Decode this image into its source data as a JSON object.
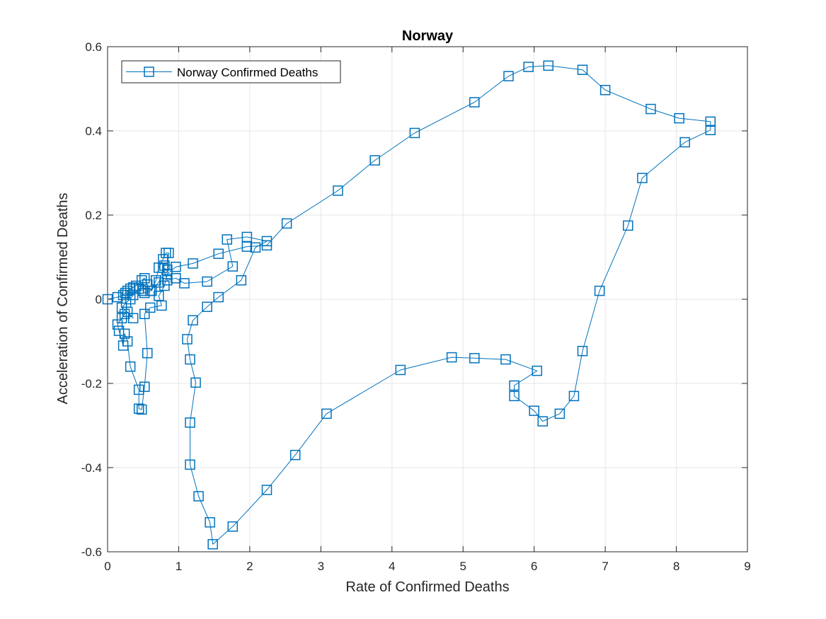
{
  "chart_data": {
    "type": "line",
    "title": "Norway",
    "xlabel": "Rate of Confirmed Deaths",
    "ylabel": "Acceleration of Confirmed Deaths",
    "xlim": [
      0,
      9
    ],
    "ylim": [
      -0.6,
      0.6
    ],
    "xticks": [
      0,
      1,
      2,
      3,
      4,
      5,
      6,
      7,
      8,
      9
    ],
    "yticks": [
      -0.6,
      -0.4,
      -0.2,
      0,
      0.2,
      0.4,
      0.6
    ],
    "xtick_labels": [
      "0",
      "1",
      "2",
      "3",
      "4",
      "5",
      "6",
      "7",
      "8",
      "9"
    ],
    "ytick_labels": [
      "-0.6",
      "-0.4",
      "-0.2",
      "0",
      "0.2",
      "0.4",
      "0.6"
    ],
    "grid": true,
    "legend_position": "top-left",
    "marker": "square",
    "series": [
      {
        "name": "Norway Confirmed Deaths",
        "color": "#0072BD",
        "points": [
          [
            0,
            0
          ],
          [
            0.14,
            0.005
          ],
          [
            0.22,
            0.01
          ],
          [
            0.25,
            0.015
          ],
          [
            0.28,
            0.02
          ],
          [
            0.32,
            0.025
          ],
          [
            0.36,
            0.028
          ],
          [
            0.4,
            0.032
          ],
          [
            0.48,
            0.045
          ],
          [
            0.52,
            0.05
          ],
          [
            0.56,
            0.035
          ],
          [
            0.62,
            0.02
          ],
          [
            0.68,
            0.045
          ],
          [
            0.72,
            0.075
          ],
          [
            0.78,
            0.095
          ],
          [
            0.82,
            0.11
          ],
          [
            0.86,
            0.11
          ],
          [
            0.84,
            0.07
          ],
          [
            0.78,
            0.075
          ],
          [
            0.84,
            0.045
          ],
          [
            0.96,
            0.05
          ],
          [
            1.08,
            0.038
          ],
          [
            1.4,
            0.042
          ],
          [
            1.76,
            0.078
          ],
          [
            1.68,
            0.142
          ],
          [
            1.96,
            0.148
          ],
          [
            2.24,
            0.138
          ],
          [
            2.08,
            0.123
          ],
          [
            1.88,
            0.045
          ],
          [
            1.56,
            0.005
          ],
          [
            1.4,
            -0.018
          ],
          [
            1.2,
            -0.05
          ],
          [
            1.12,
            -0.095
          ],
          [
            1.16,
            -0.143
          ],
          [
            1.24,
            -0.198
          ],
          [
            1.16,
            -0.293
          ],
          [
            1.16,
            -0.393
          ],
          [
            1.28,
            -0.468
          ],
          [
            1.44,
            -0.53
          ],
          [
            1.48,
            -0.582
          ],
          [
            1.76,
            -0.54
          ],
          [
            2.24,
            -0.453
          ],
          [
            2.64,
            -0.37
          ],
          [
            3.08,
            -0.272
          ],
          [
            4.12,
            -0.168
          ],
          [
            4.84,
            -0.138
          ],
          [
            5.16,
            -0.14
          ],
          [
            5.6,
            -0.143
          ],
          [
            6.04,
            -0.17
          ],
          [
            5.72,
            -0.205
          ],
          [
            5.72,
            -0.23
          ],
          [
            6.0,
            -0.265
          ],
          [
            6.12,
            -0.29
          ],
          [
            6.36,
            -0.272
          ],
          [
            6.56,
            -0.23
          ],
          [
            6.68,
            -0.123
          ],
          [
            6.92,
            0.02
          ],
          [
            7.32,
            0.175
          ],
          [
            7.52,
            0.288
          ],
          [
            8.12,
            0.373
          ],
          [
            8.48,
            0.402
          ],
          [
            8.48,
            0.422
          ],
          [
            8.04,
            0.43
          ],
          [
            7.64,
            0.452
          ],
          [
            7.0,
            0.497
          ],
          [
            6.68,
            0.545
          ],
          [
            6.2,
            0.555
          ],
          [
            5.92,
            0.552
          ],
          [
            5.64,
            0.53
          ],
          [
            5.16,
            0.468
          ],
          [
            4.32,
            0.395
          ],
          [
            3.76,
            0.33
          ],
          [
            3.24,
            0.258
          ],
          [
            2.52,
            0.18
          ],
          [
            2.24,
            0.128
          ],
          [
            1.96,
            0.125
          ],
          [
            1.56,
            0.108
          ],
          [
            1.2,
            0.085
          ],
          [
            0.96,
            0.077
          ],
          [
            0.84,
            0.06
          ],
          [
            0.8,
            0.032
          ],
          [
            0.72,
            0.008
          ],
          [
            0.76,
            -0.015
          ],
          [
            0.6,
            -0.02
          ],
          [
            0.52,
            -0.035
          ],
          [
            0.56,
            -0.128
          ],
          [
            0.52,
            -0.208
          ],
          [
            0.48,
            -0.262
          ],
          [
            0.44,
            -0.26
          ],
          [
            0.44,
            -0.215
          ],
          [
            0.32,
            -0.16
          ],
          [
            0.28,
            -0.1
          ],
          [
            0.24,
            -0.082
          ],
          [
            0.22,
            -0.11
          ],
          [
            0.16,
            -0.075
          ],
          [
            0.14,
            -0.06
          ],
          [
            0.2,
            -0.045
          ],
          [
            0.24,
            -0.035
          ],
          [
            0.28,
            -0.03
          ],
          [
            0.36,
            -0.045
          ],
          [
            0.2,
            -0.02
          ],
          [
            0.26,
            -0.008
          ],
          [
            0.32,
            0.0
          ],
          [
            0.36,
            0.01
          ],
          [
            0.44,
            0.025
          ],
          [
            0.5,
            0.02
          ],
          [
            0.52,
            0.015
          ],
          [
            0.6,
            0.02
          ],
          [
            0.72,
            0.04
          ],
          [
            0.8,
            0.08
          ]
        ]
      }
    ]
  }
}
